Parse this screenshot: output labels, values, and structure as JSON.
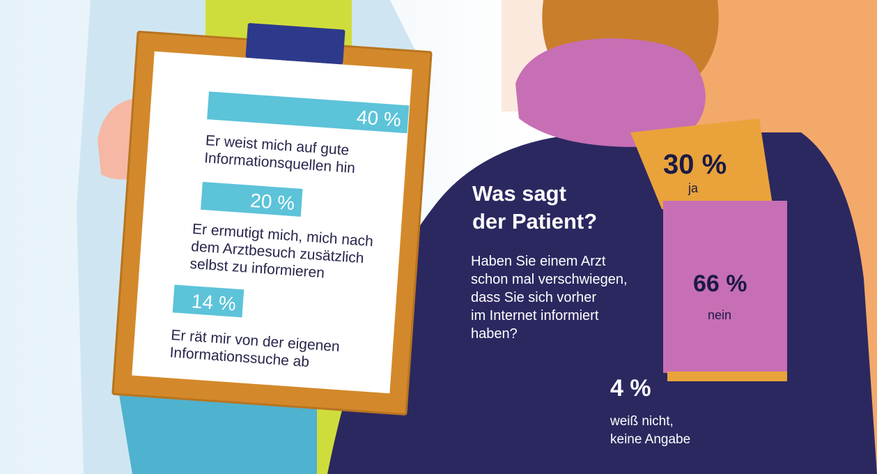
{
  "clipboard": {
    "items": [
      {
        "value": 40,
        "value_label": "40 %",
        "lines": [
          "Er weist mich auf gute",
          "Informationsquellen hin"
        ]
      },
      {
        "value": 20,
        "value_label": "20 %",
        "lines": [
          "Er ermutigt mich, mich nach",
          "dem Arztbesuch zusätzlich",
          "selbst zu informieren"
        ]
      },
      {
        "value": 14,
        "value_label": "14 %",
        "lines": [
          "Er rät mir von der eigenen",
          "Informationssuche ab"
        ]
      }
    ]
  },
  "patient": {
    "title_line1": "Was sagt",
    "title_line2": "der Patient?",
    "question_lines": [
      "Haben Sie einem Arzt",
      "schon mal verschwiegen,",
      "dass Sie sich vorher",
      "im Internet informiert",
      "haben?"
    ],
    "answers": [
      {
        "value": 30,
        "value_label": "30 %",
        "label": "ja"
      },
      {
        "value": 66,
        "value_label": "66 %",
        "label": "nein"
      },
      {
        "value": 4,
        "value_label": "4 %",
        "label_line1": "weiß nicht,",
        "label_line2": "keine Angabe"
      }
    ]
  },
  "colors": {
    "bar": "#5cc3d9",
    "coat": "#2b2860",
    "scarf_pink": "#c76fb4",
    "scarf_orange": "#e9a33a",
    "hair": "#c97e2b",
    "background_orange": "#f3a96a"
  }
}
